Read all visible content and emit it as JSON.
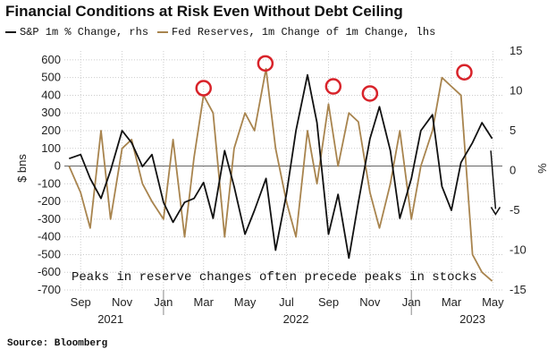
{
  "chart_data": {
    "type": "line",
    "title": "Financial Conditions at Risk Even Without Debt Ceiling",
    "source": "Source: Bloomberg",
    "y_left": {
      "label": "$ bns",
      "ylim": [
        -700,
        650
      ],
      "ticks": [
        "600",
        "500",
        "400",
        "300",
        "200",
        "100",
        "0",
        "-100",
        "-200",
        "-300",
        "-400",
        "-500",
        "-600",
        "-700"
      ]
    },
    "y_right": {
      "label": "%",
      "ylim": [
        -15,
        15
      ],
      "ticks": [
        "15",
        "10",
        "5",
        "0",
        "-5",
        "-10",
        "-15"
      ]
    },
    "x_ticks": [
      "Sep",
      "Nov",
      "Jan",
      "Mar",
      "May",
      "Jul",
      "Sep",
      "Nov",
      "Jan",
      "Mar",
      "May"
    ],
    "x_years": [
      "2021",
      "2022",
      "2023"
    ],
    "annotation": "Peaks in reserve changes often precede peaks in stocks",
    "grid": true,
    "colors": {
      "sp500": "#111111",
      "reserves": "#a8844e",
      "circle": "#d8232a",
      "grid": "#cccccc"
    },
    "series": [
      {
        "name": "S&P 1m % Change, rhs",
        "axis": "right",
        "x": [
          "2021-08-15",
          "2021-09-01",
          "2021-09-15",
          "2021-10-01",
          "2021-10-15",
          "2021-11-01",
          "2021-11-15",
          "2021-12-01",
          "2021-12-15",
          "2022-01-01",
          "2022-01-15",
          "2022-02-01",
          "2022-02-15",
          "2022-03-01",
          "2022-03-15",
          "2022-04-01",
          "2022-04-15",
          "2022-05-01",
          "2022-05-15",
          "2022-06-01",
          "2022-06-15",
          "2022-07-01",
          "2022-07-15",
          "2022-08-01",
          "2022-08-15",
          "2022-09-01",
          "2022-09-15",
          "2022-10-01",
          "2022-10-15",
          "2022-11-01",
          "2022-11-15",
          "2022-12-01",
          "2022-12-15",
          "2023-01-01",
          "2023-01-15",
          "2023-02-01",
          "2023-02-15",
          "2023-03-01",
          "2023-03-15",
          "2023-04-01",
          "2023-04-15",
          "2023-04-30"
        ],
        "values": [
          1.5,
          2.0,
          -1.0,
          -3.5,
          0.0,
          5.0,
          3.5,
          0.5,
          2.0,
          -4.0,
          -6.5,
          -4.0,
          -3.5,
          -1.5,
          -6.0,
          2.5,
          -2.0,
          -8.0,
          -5.0,
          -1.0,
          -10.0,
          -3.0,
          5.0,
          12.0,
          6.0,
          -8.0,
          -3.0,
          -11.0,
          -4.0,
          4.0,
          8.0,
          2.5,
          -6.0,
          -1.0,
          5.0,
          7.0,
          -2.0,
          -5.0,
          1.0,
          3.5,
          6.0,
          4.0
        ]
      },
      {
        "name": "Fed Reserves, 1m Change of 1m Change, lhs",
        "axis": "left",
        "x": [
          "2021-08-15",
          "2021-09-01",
          "2021-09-15",
          "2021-10-01",
          "2021-10-15",
          "2021-11-01",
          "2021-11-15",
          "2021-12-01",
          "2021-12-15",
          "2022-01-01",
          "2022-01-15",
          "2022-02-01",
          "2022-02-15",
          "2022-03-01",
          "2022-03-15",
          "2022-04-01",
          "2022-04-15",
          "2022-05-01",
          "2022-05-15",
          "2022-06-01",
          "2022-06-15",
          "2022-07-01",
          "2022-07-15",
          "2022-08-01",
          "2022-08-15",
          "2022-09-01",
          "2022-09-15",
          "2022-10-01",
          "2022-10-15",
          "2022-11-01",
          "2022-11-15",
          "2022-12-01",
          "2022-12-15",
          "2023-01-01",
          "2023-01-15",
          "2023-02-01",
          "2023-02-15",
          "2023-03-01",
          "2023-03-15",
          "2023-04-01",
          "2023-04-15",
          "2023-04-30"
        ],
        "values": [
          0,
          -150,
          -350,
          200,
          -300,
          100,
          150,
          -100,
          -200,
          -300,
          150,
          -400,
          50,
          400,
          300,
          -400,
          100,
          300,
          200,
          550,
          100,
          -200,
          -400,
          200,
          -100,
          350,
          0,
          300,
          250,
          -150,
          -350,
          -100,
          200,
          -300,
          0,
          200,
          500,
          450,
          400,
          -500,
          -600,
          -650
        ]
      }
    ],
    "peak_markers": [
      {
        "date": "2022-03-01",
        "value": 440
      },
      {
        "date": "2022-05-31",
        "value": 580
      },
      {
        "date": "2022-09-08",
        "value": 450
      },
      {
        "date": "2022-11-01",
        "value": 410
      },
      {
        "date": "2023-03-20",
        "value": 530
      }
    ],
    "arrow": {
      "from_date": "2023-04-28",
      "from_value": 2.5,
      "to_date": "2023-05-05",
      "to_value": -5.5
    }
  }
}
